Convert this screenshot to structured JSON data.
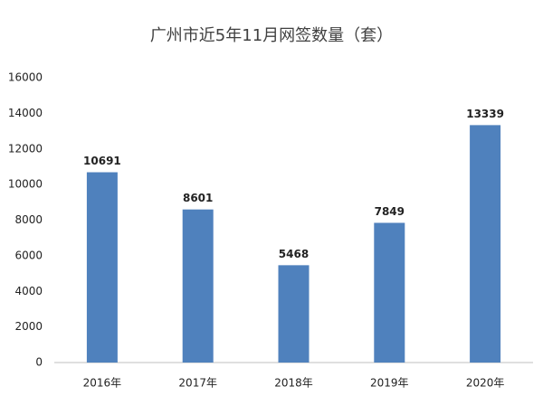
{
  "chart_data": {
    "type": "bar",
    "title": "广州市近5年11月网签数量（套）",
    "categories": [
      "2016年",
      "2017年",
      "2018年",
      "2019年",
      "2020年"
    ],
    "values": [
      10691,
      8601,
      5468,
      7849,
      13339
    ],
    "color": "#4f81bd",
    "ylim": [
      0,
      16000
    ],
    "yticks": [
      0,
      2000,
      4000,
      6000,
      8000,
      10000,
      12000,
      14000,
      16000
    ],
    "grid": false
  }
}
